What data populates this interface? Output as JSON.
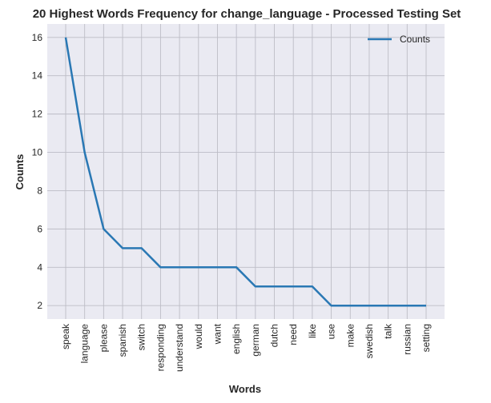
{
  "chart_data": {
    "type": "line",
    "title": "20 Highest Words Frequency for change_language - Processed Testing Set",
    "xlabel": "Words",
    "ylabel": "Counts",
    "categories": [
      "speak",
      "language",
      "please",
      "spanish",
      "switch",
      "responding",
      "understand",
      "would",
      "want",
      "english",
      "german",
      "dutch",
      "need",
      "like",
      "use",
      "make",
      "swedish",
      "talk",
      "russian",
      "setting"
    ],
    "series": [
      {
        "name": "Counts",
        "values": [
          16,
          10,
          6,
          5,
          5,
          4,
          4,
          4,
          4,
          4,
          3,
          3,
          3,
          3,
          2,
          2,
          2,
          2,
          2,
          2
        ]
      }
    ],
    "ylim": [
      1.3,
      16.7
    ],
    "yticks": [
      2,
      4,
      6,
      8,
      10,
      12,
      14,
      16
    ],
    "grid": true,
    "legend": "top-right",
    "colors": {
      "line": "#2a78b4",
      "plot_bg": "#eaeaf2",
      "grid": "#bdbdc6"
    }
  }
}
